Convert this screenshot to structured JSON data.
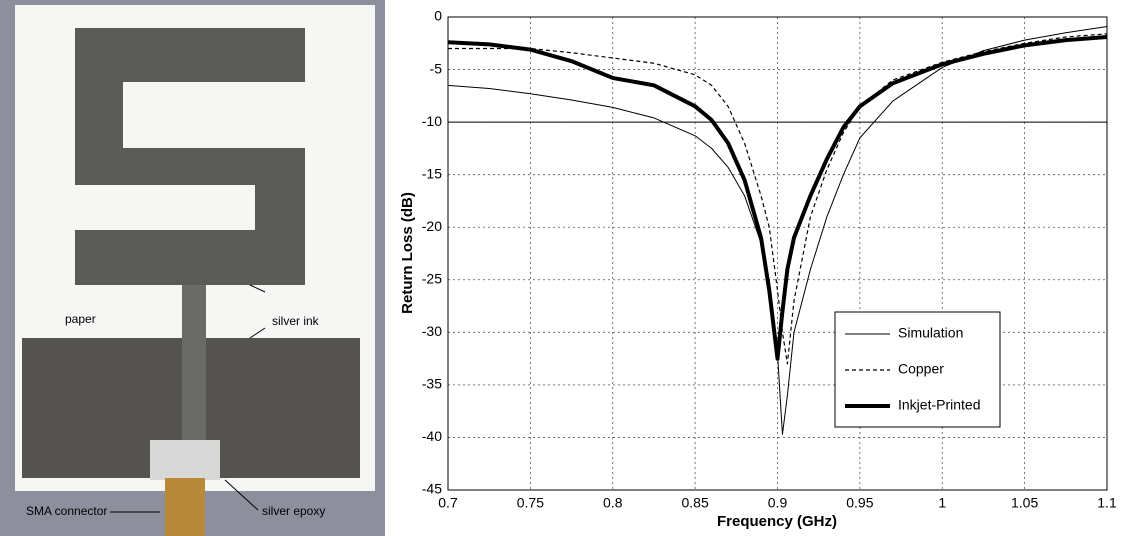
{
  "photo": {
    "labels": [
      "paper",
      "silver ink",
      "SMA connector",
      "silver epoxy"
    ]
  },
  "chart_data": {
    "type": "line",
    "xlabel": "Frequency (GHz)",
    "ylabel": "Return Loss (dB)",
    "x": [
      0.7,
      0.725,
      0.75,
      0.775,
      0.8,
      0.825,
      0.85,
      0.86,
      0.87,
      0.88,
      0.89,
      0.895,
      0.9,
      0.903,
      0.906,
      0.91,
      0.92,
      0.93,
      0.94,
      0.95,
      0.97,
      1.0,
      1.025,
      1.05,
      1.075,
      1.1
    ],
    "series": [
      {
        "name": "Simulation",
        "color": "#000000",
        "style": "solid",
        "width": 1,
        "values": [
          -6.5,
          -6.8,
          -7.3,
          -7.9,
          -8.6,
          -9.6,
          -11.3,
          -12.5,
          -14.3,
          -17,
          -21.5,
          -25,
          -32,
          -39.7,
          -36,
          -30,
          -24,
          -19,
          -15,
          -11.5,
          -8,
          -4.8,
          -3.2,
          -2.2,
          -1.5,
          -0.9
        ]
      },
      {
        "name": "Copper",
        "color": "#000000",
        "style": "dashed",
        "width": 1.2,
        "values": [
          -3.0,
          -3.0,
          -3.0,
          -3.4,
          -3.9,
          -4.4,
          -5.5,
          -6.5,
          -8.5,
          -12,
          -17,
          -20,
          -26,
          -30,
          -33,
          -27,
          -19,
          -14.5,
          -11,
          -8.5,
          -6,
          -4.3,
          -3.3,
          -2.5,
          -1.9,
          -1.6
        ]
      },
      {
        "name": "Inkjet-Printed",
        "color": "#000000",
        "style": "solid",
        "width": 4,
        "values": [
          -2.4,
          -2.6,
          -3.1,
          -4.2,
          -5.8,
          -6.5,
          -8.5,
          -9.8,
          -12,
          -15.5,
          -21,
          -26,
          -32.5,
          -28,
          -24,
          -21,
          -17,
          -13.5,
          -10.5,
          -8.5,
          -6.3,
          -4.5,
          -3.5,
          -2.7,
          -2.2,
          -1.9
        ]
      }
    ],
    "reference_line": -10,
    "xlim": [
      0.7,
      1.1
    ],
    "xticks": [
      0.7,
      0.75,
      0.8,
      0.85,
      0.9,
      0.95,
      1,
      1.05,
      1.1
    ],
    "ylim": [
      -45,
      0
    ],
    "yticks": [
      -45,
      -40,
      -35,
      -30,
      -25,
      -20,
      -15,
      -10,
      -5,
      0
    ],
    "grid": true,
    "legend": "lower right"
  }
}
